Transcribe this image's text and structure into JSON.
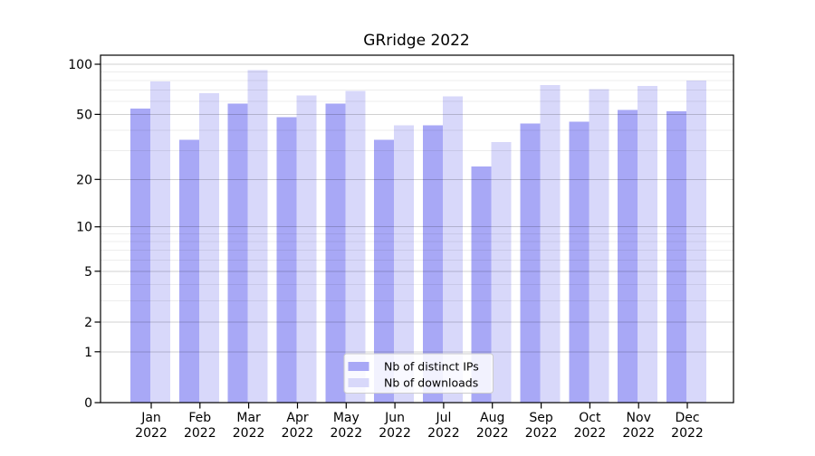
{
  "chart_data": {
    "type": "bar",
    "title": "GRridge 2022",
    "categories": [
      "Jan 2022",
      "Feb 2022",
      "Mar 2022",
      "Apr 2022",
      "May 2022",
      "Jun 2022",
      "Jul 2022",
      "Aug 2022",
      "Sep 2022",
      "Oct 2022",
      "Nov 2022",
      "Dec 2022"
    ],
    "month_labels": [
      "Jan",
      "Feb",
      "Mar",
      "Apr",
      "May",
      "Jun",
      "Jul",
      "Aug",
      "Sep",
      "Oct",
      "Nov",
      "Dec"
    ],
    "year_label": "2022",
    "series": [
      {
        "name": "Nb of distinct IPs",
        "color": "#a8a8f6",
        "values": [
          54,
          35,
          58,
          48,
          58,
          35,
          43,
          24,
          44,
          45,
          53,
          52
        ]
      },
      {
        "name": "Nb of downloads",
        "color": "#d8d8fa",
        "values": [
          79,
          67,
          92,
          65,
          69,
          43,
          64,
          34,
          75,
          71,
          74,
          80
        ]
      }
    ],
    "y_axis": {
      "scale": "log1p",
      "ticks": [
        0,
        1,
        2,
        5,
        10,
        20,
        50,
        100
      ],
      "minor_gridlines": [
        3,
        4,
        6,
        7,
        8,
        9,
        30,
        40,
        60,
        70,
        80,
        90
      ],
      "range": [
        0,
        100
      ]
    },
    "legend": {
      "position": "bottom-center"
    },
    "grid": true,
    "xlabel": "",
    "ylabel": ""
  },
  "colors": {
    "background": "#ffffff",
    "axis": "#000000",
    "bar_ips": "#a8a8f6",
    "bar_downloads": "#d8d8fa"
  }
}
